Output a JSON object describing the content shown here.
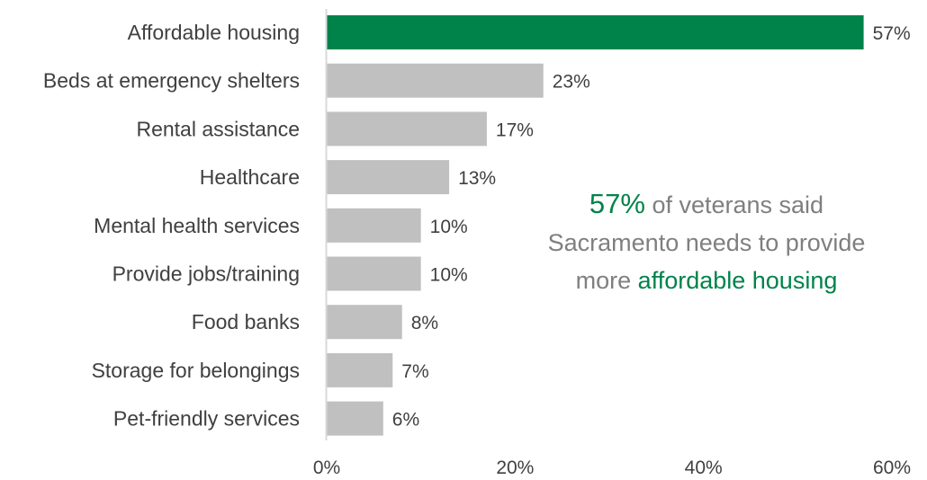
{
  "colors": {
    "highlight": "#00834a",
    "bar": "#c0c0c0",
    "axis": "#d9d9d9",
    "text": "#404040",
    "note": "#7f7f7f"
  },
  "chart_data": {
    "type": "bar",
    "orientation": "horizontal",
    "categories": [
      "Affordable housing",
      "Beds at emergency shelters",
      "Rental assistance",
      "Healthcare",
      "Mental health services",
      "Provide jobs/training",
      "Food banks",
      "Storage for belongings",
      "Pet-friendly services"
    ],
    "values": [
      57,
      23,
      17,
      13,
      10,
      10,
      8,
      7,
      6
    ],
    "value_labels": [
      "57%",
      "23%",
      "17%",
      "13%",
      "10%",
      "10%",
      "8%",
      "7%",
      "6%"
    ],
    "highlight_index": 0,
    "xlim": [
      0,
      60
    ],
    "x_ticks": [
      0,
      20,
      40,
      60
    ],
    "x_tick_labels": [
      "0%",
      "20%",
      "40%",
      "60%"
    ],
    "grid": false
  },
  "annotation": {
    "stat": "57%",
    "text_1": " of veterans said Sacramento needs to provide more ",
    "highlight": "affordable housing"
  }
}
